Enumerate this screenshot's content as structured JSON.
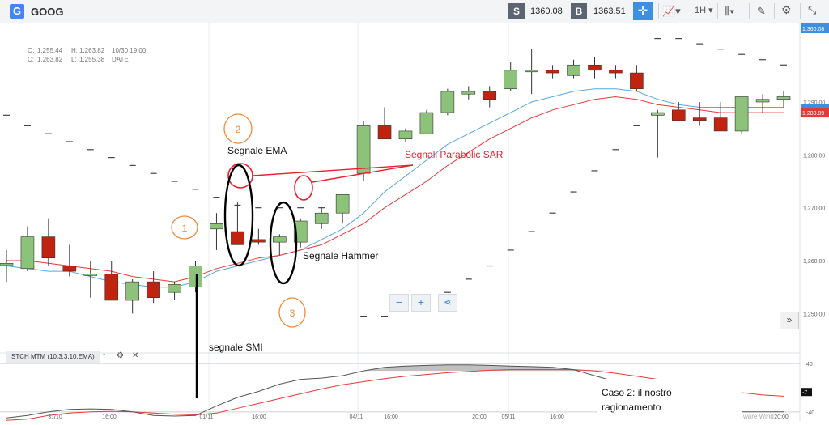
{
  "toolbar": {
    "logo_letter": "G",
    "symbol": "GOOG",
    "sell_label": "S",
    "sell_price": "1360.08",
    "buy_label": "B",
    "buy_price": "1363.51",
    "timeframe": "1H"
  },
  "info": {
    "open_label": "O:",
    "open": "1,255.44",
    "high_label": "H:",
    "high": "1,263.82",
    "date_time": "10/30 19:00",
    "close_label": "C:",
    "close": "1,263.82",
    "low_label": "L:",
    "low": "1,255.38",
    "date_label": "DATE"
  },
  "indicator": {
    "name": "STCH MTM (10,3,3,10,EMA)"
  },
  "zoom": {
    "minus": "−",
    "plus": "+"
  },
  "colors": {
    "up": "#8cc27a",
    "down": "#c0240f",
    "ema_fast": "#5ba6dd",
    "ema_slow": "#e8383b",
    "annotation_orange": "#f08a3a",
    "annotation_red": "#e82030"
  },
  "chart_data": {
    "type": "candlestick",
    "ylim": [
      1245,
      1305
    ],
    "yticks": [
      "1,290.00",
      "1,280.00",
      "1,270.00",
      "1,260.00",
      "1,250.00"
    ],
    "current_price_label": "1,360.08",
    "ema_price_label": "1,288.89",
    "xticks": [
      "31/10",
      "16:00",
      "01/11",
      "16:00",
      "04/11",
      "16:00",
      "20:00",
      "05/11",
      "16:00",
      "20:00"
    ],
    "candles": [
      {
        "o": 1259.5,
        "h": 1262,
        "l": 1256,
        "c": 1259.5
      },
      {
        "o": 1258.5,
        "h": 1266.5,
        "l": 1258,
        "c": 1264.5
      },
      {
        "o": 1264.5,
        "h": 1268,
        "l": 1259,
        "c": 1260.5
      },
      {
        "o": 1259,
        "h": 1263,
        "l": 1257,
        "c": 1258
      },
      {
        "o": 1257.5,
        "h": 1260,
        "l": 1253,
        "c": 1257.5
      },
      {
        "o": 1257.5,
        "h": 1260,
        "l": 1252.5,
        "c": 1252.5
      },
      {
        "o": 1252.5,
        "h": 1256.5,
        "l": 1250,
        "c": 1256
      },
      {
        "o": 1256,
        "h": 1258,
        "l": 1252,
        "c": 1253
      },
      {
        "o": 1254,
        "h": 1256,
        "l": 1252.5,
        "c": 1255.5
      },
      {
        "o": 1255,
        "h": 1260,
        "l": 1254,
        "c": 1259
      },
      {
        "o": 1266,
        "h": 1269,
        "l": 1262,
        "c": 1267
      },
      {
        "o": 1265.5,
        "h": 1271,
        "l": 1263,
        "c": 1263
      },
      {
        "o": 1264,
        "h": 1266,
        "l": 1263,
        "c": 1263.5
      },
      {
        "o": 1263.5,
        "h": 1265,
        "l": 1261,
        "c": 1264.5
      },
      {
        "o": 1263.5,
        "h": 1268,
        "l": 1262.5,
        "c": 1267.5
      },
      {
        "o": 1267,
        "h": 1270,
        "l": 1266,
        "c": 1269
      },
      {
        "o": 1269,
        "h": 1272.5,
        "l": 1267,
        "c": 1272.5
      },
      {
        "o": 1276.5,
        "h": 1286.5,
        "l": 1275,
        "c": 1285.5
      },
      {
        "o": 1285.5,
        "h": 1289,
        "l": 1283,
        "c": 1283
      },
      {
        "o": 1283,
        "h": 1285,
        "l": 1282.5,
        "c": 1284.5
      },
      {
        "o": 1284,
        "h": 1288.5,
        "l": 1284,
        "c": 1288
      },
      {
        "o": 1288,
        "h": 1292.5,
        "l": 1287.5,
        "c": 1292
      },
      {
        "o": 1291.5,
        "h": 1293,
        "l": 1290.5,
        "c": 1292
      },
      {
        "o": 1292,
        "h": 1293,
        "l": 1289,
        "c": 1290.5
      },
      {
        "o": 1292.5,
        "h": 1297.5,
        "l": 1292,
        "c": 1296
      },
      {
        "o": 1296,
        "h": 1300,
        "l": 1291.5,
        "c": 1296
      },
      {
        "o": 1296,
        "h": 1297,
        "l": 1294.5,
        "c": 1295.5
      },
      {
        "o": 1295,
        "h": 1298,
        "l": 1294.5,
        "c": 1297
      },
      {
        "o": 1297,
        "h": 1298.5,
        "l": 1294.5,
        "c": 1296
      },
      {
        "o": 1296,
        "h": 1297,
        "l": 1294.5,
        "c": 1295.5
      },
      {
        "o": 1295.5,
        "h": 1297,
        "l": 1292,
        "c": 1292.5
      },
      {
        "o": 1287.5,
        "h": 1288.5,
        "l": 1279.5,
        "c": 1288
      },
      {
        "o": 1288.5,
        "h": 1290,
        "l": 1286.5,
        "c": 1286.5
      },
      {
        "o": 1287,
        "h": 1290,
        "l": 1285.5,
        "c": 1286.5
      },
      {
        "o": 1287,
        "h": 1290,
        "l": 1284.5,
        "c": 1284.5
      },
      {
        "o": 1284.5,
        "h": 1291,
        "l": 1284,
        "c": 1291
      },
      {
        "o": 1290,
        "h": 1291.5,
        "l": 1288,
        "c": 1290.5
      },
      {
        "o": 1290.5,
        "h": 1292,
        "l": 1289,
        "c": 1291
      }
    ],
    "ema_fast": [
      1259,
      1258.5,
      1258,
      1258,
      1257,
      1256,
      1255.5,
      1255,
      1255,
      1256,
      1258,
      1259,
      1260,
      1261,
      1262,
      1264,
      1266,
      1269,
      1273,
      1276,
      1279,
      1282,
      1284,
      1286,
      1288,
      1290,
      1291,
      1292,
      1292.5,
      1292.5,
      1292,
      1290.5,
      1289.5,
      1289,
      1289,
      1289,
      1289,
      1289
    ],
    "ema_slow": [
      1260,
      1260,
      1259.5,
      1259,
      1258.5,
      1258,
      1257,
      1256.5,
      1256,
      1257,
      1258.5,
      1259.5,
      1260.5,
      1261,
      1262,
      1263,
      1265,
      1267,
      1270,
      1272.5,
      1275,
      1278,
      1280.5,
      1283,
      1285,
      1287,
      1288.5,
      1289.5,
      1290.5,
      1291,
      1290.5,
      1289.5,
      1289,
      1288.5,
      1288,
      1288,
      1288,
      1288
    ],
    "psar": [
      1287.5,
      1285.5,
      1284,
      1282.5,
      1281,
      1279.5,
      1278,
      1276.5,
      1275,
      1273.5,
      1272,
      1270.5,
      1270,
      1270,
      1270,
      1270,
      1270,
      1249.5,
      1249.5,
      1250.5,
      1252,
      1254,
      1256.5,
      1259,
      1262,
      1265.5,
      1269,
      1273,
      1277,
      1281,
      1285.5,
      1302,
      1302,
      1301,
      1300,
      1299,
      1298,
      1297
    ],
    "indicator": {
      "ylim": [
        -55,
        55
      ],
      "yticks": [
        "40",
        "-40"
      ],
      "stoch_line": [
        -50,
        -46,
        -40,
        -36,
        -35,
        -36,
        -40,
        -46,
        -47,
        -46,
        -30,
        -16,
        -6,
        6,
        14,
        16,
        20,
        28,
        34,
        36,
        37,
        38,
        38,
        37,
        36,
        35,
        34,
        30,
        20,
        10,
        -4,
        -14,
        -26,
        -38,
        -42,
        -40,
        -40,
        -40
      ],
      "signal_line": [
        -54,
        -52,
        -46,
        -42,
        -40,
        -39,
        -40,
        -42,
        -44,
        -45,
        -42,
        -34,
        -26,
        -18,
        -10,
        -2,
        5,
        10,
        15,
        19,
        22,
        25,
        27,
        29,
        30,
        30,
        30,
        30,
        28,
        24,
        19,
        14,
        8,
        3,
        -2,
        -8,
        -12,
        -14
      ],
      "last_value": "-7"
    },
    "annotations": {
      "label_1": "1",
      "label_2": "2",
      "label_3": "3",
      "ema_signal": "Segnale EMA",
      "psar_signal": "Segnali Parabolic SAR",
      "hammer_signal": "Segnale Hammer",
      "smi_signal": "segnale SMI",
      "case_line1": "Caso 2: il nostro",
      "case_line2": "ragionamento",
      "watermark": "ware Wind"
    }
  }
}
